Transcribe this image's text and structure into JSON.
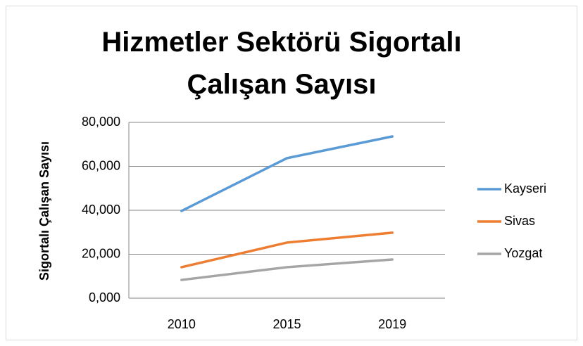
{
  "chart_data": {
    "type": "line",
    "title": "Hizmetler Sektörü Sigortalı Çalışan Sayısı",
    "y_label": "Sigortalı Çalışan Sayısı",
    "categories": [
      "2010",
      "2015",
      "2019"
    ],
    "series": [
      {
        "name": "Kayseri",
        "color": "#5b9bd5",
        "values": [
          39700,
          63700,
          73600
        ]
      },
      {
        "name": "Sivas",
        "color": "#ed7d31",
        "values": [
          14100,
          25300,
          29800
        ]
      },
      {
        "name": "Yozgat",
        "color": "#a5a5a5",
        "values": [
          8300,
          14100,
          17600
        ]
      }
    ],
    "ylim": [
      0,
      80000
    ],
    "yticks": [
      {
        "value": 0,
        "label": "0,000"
      },
      {
        "value": 20000,
        "label": "20,000"
      },
      {
        "value": 40000,
        "label": "40,000"
      },
      {
        "value": 60000,
        "label": "60,000"
      },
      {
        "value": 80000,
        "label": "80,000"
      }
    ],
    "grid": true,
    "legend": "right"
  }
}
